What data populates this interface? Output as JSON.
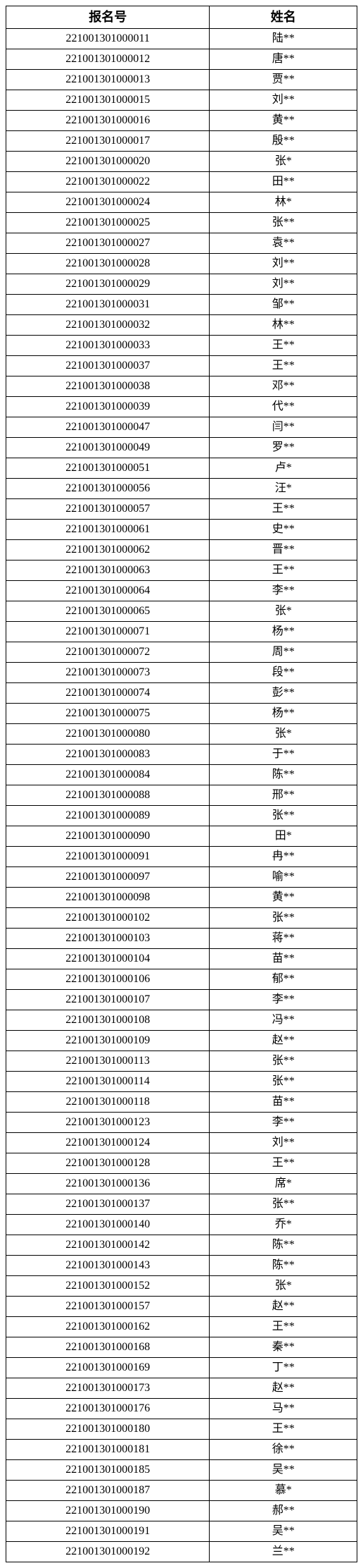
{
  "table": {
    "columns": [
      "报名号",
      "姓名"
    ],
    "column_widths": [
      "58%",
      "42%"
    ],
    "border_color": "#000000",
    "background_color": "#ffffff",
    "header_fontsize": 18,
    "cell_fontsize": 16,
    "font_family": "SimSun",
    "rows": [
      [
        "221001301000011",
        "陆**"
      ],
      [
        "221001301000012",
        "唐**"
      ],
      [
        "221001301000013",
        "贾**"
      ],
      [
        "221001301000015",
        "刘**"
      ],
      [
        "221001301000016",
        "黄**"
      ],
      [
        "221001301000017",
        "殷**"
      ],
      [
        "221001301000020",
        "张*"
      ],
      [
        "221001301000022",
        "田**"
      ],
      [
        "221001301000024",
        "林*"
      ],
      [
        "221001301000025",
        "张**"
      ],
      [
        "221001301000027",
        "袁**"
      ],
      [
        "221001301000028",
        "刘**"
      ],
      [
        "221001301000029",
        "刘**"
      ],
      [
        "221001301000031",
        "邹**"
      ],
      [
        "221001301000032",
        "林**"
      ],
      [
        "221001301000033",
        "王**"
      ],
      [
        "221001301000037",
        "王**"
      ],
      [
        "221001301000038",
        "邓**"
      ],
      [
        "221001301000039",
        "代**"
      ],
      [
        "221001301000047",
        "闫**"
      ],
      [
        "221001301000049",
        "罗**"
      ],
      [
        "221001301000051",
        "卢*"
      ],
      [
        "221001301000056",
        "汪*"
      ],
      [
        "221001301000057",
        "王**"
      ],
      [
        "221001301000061",
        "史**"
      ],
      [
        "221001301000062",
        "晋**"
      ],
      [
        "221001301000063",
        "王**"
      ],
      [
        "221001301000064",
        "李**"
      ],
      [
        "221001301000065",
        "张*"
      ],
      [
        "221001301000071",
        "杨**"
      ],
      [
        "221001301000072",
        "周**"
      ],
      [
        "221001301000073",
        "段**"
      ],
      [
        "221001301000074",
        "彭**"
      ],
      [
        "221001301000075",
        "杨**"
      ],
      [
        "221001301000080",
        "张*"
      ],
      [
        "221001301000083",
        "于**"
      ],
      [
        "221001301000084",
        "陈**"
      ],
      [
        "221001301000088",
        "邢**"
      ],
      [
        "221001301000089",
        "张**"
      ],
      [
        "221001301000090",
        "田*"
      ],
      [
        "221001301000091",
        "冉**"
      ],
      [
        "221001301000097",
        "喻**"
      ],
      [
        "221001301000098",
        "黄**"
      ],
      [
        "221001301000102",
        "张**"
      ],
      [
        "221001301000103",
        "蒋**"
      ],
      [
        "221001301000104",
        "苗**"
      ],
      [
        "221001301000106",
        "郁**"
      ],
      [
        "221001301000107",
        "李**"
      ],
      [
        "221001301000108",
        "冯**"
      ],
      [
        "221001301000109",
        "赵**"
      ],
      [
        "221001301000113",
        "张**"
      ],
      [
        "221001301000114",
        "张**"
      ],
      [
        "221001301000118",
        "苗**"
      ],
      [
        "221001301000123",
        "李**"
      ],
      [
        "221001301000124",
        "刘**"
      ],
      [
        "221001301000128",
        "王**"
      ],
      [
        "221001301000136",
        "席*"
      ],
      [
        "221001301000137",
        "张**"
      ],
      [
        "221001301000140",
        "乔*"
      ],
      [
        "221001301000142",
        "陈**"
      ],
      [
        "221001301000143",
        "陈**"
      ],
      [
        "221001301000152",
        "张*"
      ],
      [
        "221001301000157",
        "赵**"
      ],
      [
        "221001301000162",
        "王**"
      ],
      [
        "221001301000168",
        "秦**"
      ],
      [
        "221001301000169",
        "丁**"
      ],
      [
        "221001301000173",
        "赵**"
      ],
      [
        "221001301000176",
        "马**"
      ],
      [
        "221001301000180",
        "王**"
      ],
      [
        "221001301000181",
        "徐**"
      ],
      [
        "221001301000185",
        "吴**"
      ],
      [
        "221001301000187",
        "慕*"
      ],
      [
        "221001301000190",
        "郝**"
      ],
      [
        "221001301000191",
        "吴**"
      ],
      [
        "221001301000192",
        "兰**"
      ]
    ]
  }
}
